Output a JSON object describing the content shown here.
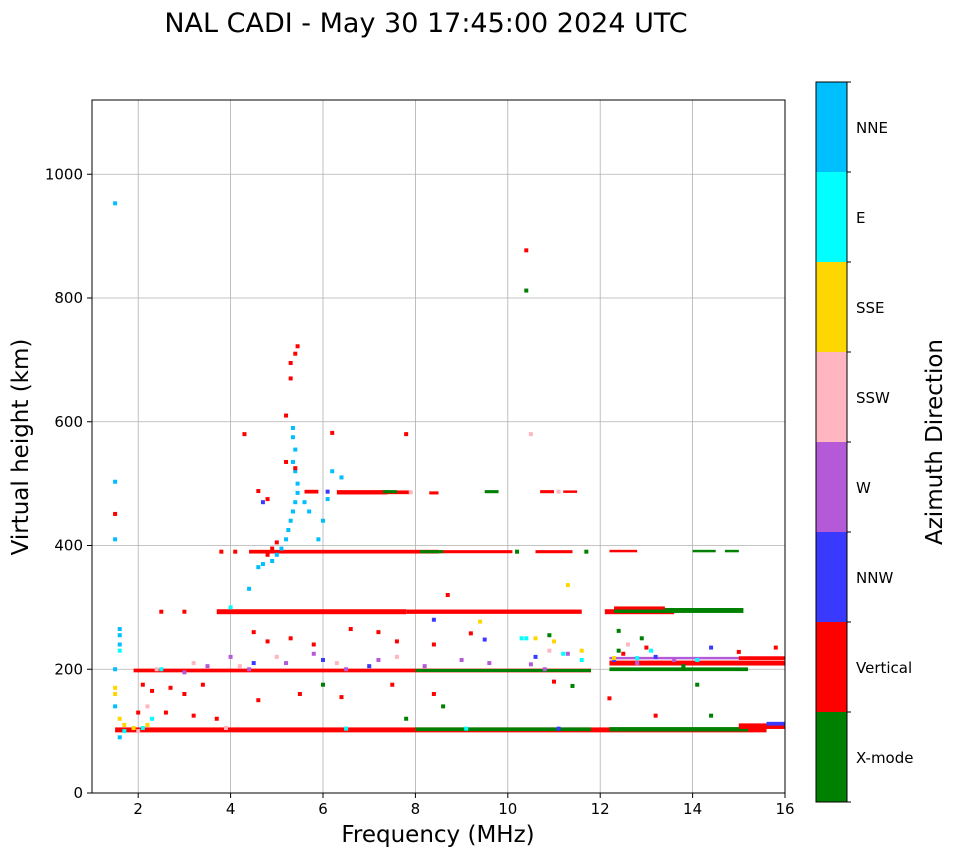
{
  "chart_data": {
    "type": "scatter",
    "title": "NAL CADI - May 30 17:45:00 2024 UTC",
    "xlabel": "Frequency (MHz)",
    "ylabel": "Virtual height (km)",
    "xlim": [
      1,
      16
    ],
    "ylim": [
      0,
      1120
    ],
    "xticks": [
      2,
      4,
      6,
      8,
      10,
      12,
      14,
      16
    ],
    "yticks": [
      0,
      200,
      400,
      600,
      800,
      1000
    ],
    "grid": true,
    "colorbar": {
      "label": "Azimuth Direction",
      "categories": [
        {
          "name": "X-mode",
          "color": "#008000"
        },
        {
          "name": "Vertical",
          "color": "#ff0000"
        },
        {
          "name": "NNW",
          "color": "#3a3aff"
        },
        {
          "name": "W",
          "color": "#b45ad8"
        },
        {
          "name": "SSW",
          "color": "#ffb6c1"
        },
        {
          "name": "SSE",
          "color": "#ffd700"
        },
        {
          "name": "E",
          "color": "#00ffff"
        },
        {
          "name": "NNE",
          "color": "#00bfff"
        }
      ]
    },
    "traces": [
      {
        "dir": "Vertical",
        "x0": 1.5,
        "x1": 15.6,
        "y": 102,
        "h": 8
      },
      {
        "dir": "X-mode",
        "x0": 8.0,
        "x1": 11.8,
        "y": 103,
        "h": 6
      },
      {
        "dir": "X-mode",
        "x0": 12.2,
        "x1": 15.2,
        "y": 103,
        "h": 7
      },
      {
        "dir": "Vertical",
        "x0": 15.0,
        "x1": 16.0,
        "y": 108,
        "h": 9
      },
      {
        "dir": "NNW",
        "x0": 15.6,
        "x1": 16.0,
        "y": 112,
        "h": 6
      },
      {
        "dir": "Vertical",
        "x0": 1.9,
        "x1": 11.8,
        "y": 198,
        "h": 6
      },
      {
        "dir": "X-mode",
        "x0": 8.0,
        "x1": 11.8,
        "y": 198,
        "h": 5
      },
      {
        "dir": "Vertical",
        "x0": 12.2,
        "x1": 16.0,
        "y": 210,
        "h": 8
      },
      {
        "dir": "X-mode",
        "x0": 12.2,
        "x1": 15.2,
        "y": 200,
        "h": 6
      },
      {
        "dir": "W",
        "x0": 12.2,
        "x1": 15.2,
        "y": 218,
        "h": 4
      },
      {
        "dir": "Vertical",
        "x0": 15.0,
        "x1": 16.0,
        "y": 218,
        "h": 6
      },
      {
        "dir": "Vertical",
        "x0": 3.7,
        "x1": 7.8,
        "y": 293,
        "h": 8
      },
      {
        "dir": "Vertical",
        "x0": 7.8,
        "x1": 11.6,
        "y": 293,
        "h": 7
      },
      {
        "dir": "Vertical",
        "x0": 12.1,
        "x1": 13.6,
        "y": 293,
        "h": 8
      },
      {
        "dir": "X-mode",
        "x0": 12.3,
        "x1": 15.1,
        "y": 295,
        "h": 8
      },
      {
        "dir": "Vertical",
        "x0": 12.3,
        "x1": 13.4,
        "y": 299,
        "h": 5
      },
      {
        "dir": "Vertical",
        "x0": 4.4,
        "x1": 8.5,
        "y": 390,
        "h": 6
      },
      {
        "dir": "Vertical",
        "x0": 8.5,
        "x1": 10.1,
        "y": 390,
        "h": 5
      },
      {
        "dir": "X-mode",
        "x0": 8.1,
        "x1": 8.6,
        "y": 390,
        "h": 5
      },
      {
        "dir": "Vertical",
        "x0": 10.6,
        "x1": 11.4,
        "y": 390,
        "h": 5
      },
      {
        "dir": "Vertical",
        "x0": 12.2,
        "x1": 12.8,
        "y": 391,
        "h": 4
      },
      {
        "dir": "X-mode",
        "x0": 14.0,
        "x1": 14.5,
        "y": 391,
        "h": 4
      },
      {
        "dir": "X-mode",
        "x0": 14.7,
        "x1": 15.0,
        "y": 391,
        "h": 4
      },
      {
        "dir": "Vertical",
        "x0": 6.3,
        "x1": 7.4,
        "y": 486,
        "h": 7
      },
      {
        "dir": "Vertical",
        "x0": 7.4,
        "x1": 7.9,
        "y": 486,
        "h": 6
      },
      {
        "dir": "X-mode",
        "x0": 7.3,
        "x1": 7.6,
        "y": 487,
        "h": 5
      },
      {
        "dir": "Vertical",
        "x0": 8.3,
        "x1": 8.5,
        "y": 485,
        "h": 5
      },
      {
        "dir": "X-mode",
        "x0": 9.5,
        "x1": 9.8,
        "y": 487,
        "h": 5
      },
      {
        "dir": "Vertical",
        "x0": 10.7,
        "x1": 11.0,
        "y": 487,
        "h": 5
      },
      {
        "dir": "Vertical",
        "x0": 11.2,
        "x1": 11.5,
        "y": 487,
        "h": 4
      },
      {
        "dir": "Vertical",
        "x0": 5.6,
        "x1": 5.9,
        "y": 487,
        "h": 6
      }
    ],
    "points": [
      {
        "dir": "NNE",
        "x": 4.6,
        "y": 365
      },
      {
        "dir": "NNE",
        "x": 4.7,
        "y": 370
      },
      {
        "dir": "NNE",
        "x": 4.9,
        "y": 375
      },
      {
        "dir": "NNE",
        "x": 5.0,
        "y": 385
      },
      {
        "dir": "NNE",
        "x": 5.1,
        "y": 395
      },
      {
        "dir": "NNE",
        "x": 5.2,
        "y": 410
      },
      {
        "dir": "NNE",
        "x": 5.25,
        "y": 425
      },
      {
        "dir": "NNE",
        "x": 5.3,
        "y": 440
      },
      {
        "dir": "NNE",
        "x": 5.35,
        "y": 455
      },
      {
        "dir": "NNE",
        "x": 5.4,
        "y": 470
      },
      {
        "dir": "NNE",
        "x": 5.45,
        "y": 485
      },
      {
        "dir": "NNE",
        "x": 5.45,
        "y": 500
      },
      {
        "dir": "NNE",
        "x": 5.4,
        "y": 520
      },
      {
        "dir": "NNE",
        "x": 5.35,
        "y": 535
      },
      {
        "dir": "NNE",
        "x": 5.4,
        "y": 555
      },
      {
        "dir": "NNE",
        "x": 5.35,
        "y": 575
      },
      {
        "dir": "NNE",
        "x": 5.35,
        "y": 590
      },
      {
        "dir": "NNE",
        "x": 5.6,
        "y": 470
      },
      {
        "dir": "NNE",
        "x": 5.7,
        "y": 455
      },
      {
        "dir": "NNE",
        "x": 5.9,
        "y": 410
      },
      {
        "dir": "NNE",
        "x": 6.0,
        "y": 440
      },
      {
        "dir": "NNE",
        "x": 6.1,
        "y": 475
      },
      {
        "dir": "NNE",
        "x": 6.2,
        "y": 520
      },
      {
        "dir": "NNE",
        "x": 6.4,
        "y": 510
      },
      {
        "dir": "NNE",
        "x": 4.4,
        "y": 330
      },
      {
        "dir": "NNE",
        "x": 1.5,
        "y": 953
      },
      {
        "dir": "NNE",
        "x": 1.5,
        "y": 503
      },
      {
        "dir": "NNE",
        "x": 1.5,
        "y": 410
      },
      {
        "dir": "NNE",
        "x": 1.6,
        "y": 265
      },
      {
        "dir": "NNE",
        "x": 1.6,
        "y": 255
      },
      {
        "dir": "NNE",
        "x": 1.6,
        "y": 240
      },
      {
        "dir": "NNE",
        "x": 1.5,
        "y": 200
      },
      {
        "dir": "NNE",
        "x": 1.5,
        "y": 140
      },
      {
        "dir": "NNE",
        "x": 1.6,
        "y": 90
      },
      {
        "dir": "Vertical",
        "x": 5.45,
        "y": 722
      },
      {
        "dir": "Vertical",
        "x": 5.4,
        "y": 710
      },
      {
        "dir": "Vertical",
        "x": 5.3,
        "y": 695
      },
      {
        "dir": "Vertical",
        "x": 5.3,
        "y": 670
      },
      {
        "dir": "Vertical",
        "x": 5.2,
        "y": 610
      },
      {
        "dir": "Vertical",
        "x": 4.3,
        "y": 580
      },
      {
        "dir": "Vertical",
        "x": 6.2,
        "y": 582
      },
      {
        "dir": "Vertical",
        "x": 7.8,
        "y": 580
      },
      {
        "dir": "Vertical",
        "x": 1.5,
        "y": 451
      },
      {
        "dir": "Vertical",
        "x": 10.4,
        "y": 877
      },
      {
        "dir": "Vertical",
        "x": 5.2,
        "y": 535
      },
      {
        "dir": "Vertical",
        "x": 5.4,
        "y": 525
      },
      {
        "dir": "Vertical",
        "x": 4.6,
        "y": 488
      },
      {
        "dir": "Vertical",
        "x": 4.8,
        "y": 475
      },
      {
        "dir": "Vertical",
        "x": 4.8,
        "y": 385
      },
      {
        "dir": "Vertical",
        "x": 4.9,
        "y": 395
      },
      {
        "dir": "Vertical",
        "x": 5.0,
        "y": 405
      },
      {
        "dir": "Vertical",
        "x": 3.8,
        "y": 390
      },
      {
        "dir": "Vertical",
        "x": 4.1,
        "y": 390
      },
      {
        "dir": "Vertical",
        "x": 2.5,
        "y": 293
      },
      {
        "dir": "Vertical",
        "x": 3.0,
        "y": 293
      },
      {
        "dir": "Vertical",
        "x": 8.7,
        "y": 320
      },
      {
        "dir": "Vertical",
        "x": 4.5,
        "y": 260
      },
      {
        "dir": "Vertical",
        "x": 4.8,
        "y": 245
      },
      {
        "dir": "Vertical",
        "x": 5.3,
        "y": 250
      },
      {
        "dir": "Vertical",
        "x": 5.8,
        "y": 240
      },
      {
        "dir": "Vertical",
        "x": 6.6,
        "y": 265
      },
      {
        "dir": "Vertical",
        "x": 7.2,
        "y": 260
      },
      {
        "dir": "Vertical",
        "x": 7.6,
        "y": 245
      },
      {
        "dir": "Vertical",
        "x": 8.4,
        "y": 240
      },
      {
        "dir": "Vertical",
        "x": 9.2,
        "y": 258
      },
      {
        "dir": "Vertical",
        "x": 2.1,
        "y": 175
      },
      {
        "dir": "Vertical",
        "x": 2.3,
        "y": 165
      },
      {
        "dir": "Vertical",
        "x": 2.7,
        "y": 170
      },
      {
        "dir": "Vertical",
        "x": 3.0,
        "y": 160
      },
      {
        "dir": "Vertical",
        "x": 3.4,
        "y": 175
      },
      {
        "dir": "Vertical",
        "x": 4.6,
        "y": 150
      },
      {
        "dir": "Vertical",
        "x": 5.5,
        "y": 160
      },
      {
        "dir": "Vertical",
        "x": 6.4,
        "y": 155
      },
      {
        "dir": "Vertical",
        "x": 7.5,
        "y": 175
      },
      {
        "dir": "Vertical",
        "x": 8.4,
        "y": 160
      },
      {
        "dir": "Vertical",
        "x": 12.2,
        "y": 153
      },
      {
        "dir": "Vertical",
        "x": 13.2,
        "y": 125
      },
      {
        "dir": "Vertical",
        "x": 11.0,
        "y": 180
      },
      {
        "dir": "Vertical",
        "x": 2.0,
        "y": 130
      },
      {
        "dir": "Vertical",
        "x": 2.6,
        "y": 130
      },
      {
        "dir": "Vertical",
        "x": 3.2,
        "y": 125
      },
      {
        "dir": "Vertical",
        "x": 3.7,
        "y": 120
      },
      {
        "dir": "Vertical",
        "x": 12.5,
        "y": 225
      },
      {
        "dir": "Vertical",
        "x": 13.0,
        "y": 235
      },
      {
        "dir": "Vertical",
        "x": 15.8,
        "y": 235
      },
      {
        "dir": "Vertical",
        "x": 15.0,
        "y": 228
      },
      {
        "dir": "X-mode",
        "x": 10.4,
        "y": 812
      },
      {
        "dir": "X-mode",
        "x": 12.4,
        "y": 262
      },
      {
        "dir": "X-mode",
        "x": 12.9,
        "y": 250
      },
      {
        "dir": "X-mode",
        "x": 14.1,
        "y": 175
      },
      {
        "dir": "X-mode",
        "x": 14.4,
        "y": 125
      },
      {
        "dir": "X-mode",
        "x": 11.4,
        "y": 173
      },
      {
        "dir": "X-mode",
        "x": 8.6,
        "y": 140
      },
      {
        "dir": "X-mode",
        "x": 7.8,
        "y": 120
      },
      {
        "dir": "X-mode",
        "x": 6.0,
        "y": 175
      },
      {
        "dir": "X-mode",
        "x": 10.2,
        "y": 390
      },
      {
        "dir": "X-mode",
        "x": 11.7,
        "y": 390
      },
      {
        "dir": "X-mode",
        "x": 12.4,
        "y": 230
      },
      {
        "dir": "X-mode",
        "x": 13.8,
        "y": 205
      },
      {
        "dir": "X-mode",
        "x": 10.9,
        "y": 255
      },
      {
        "dir": "NNW",
        "x": 9.5,
        "y": 248
      },
      {
        "dir": "NNW",
        "x": 8.4,
        "y": 280
      },
      {
        "dir": "NNW",
        "x": 11.1,
        "y": 104
      },
      {
        "dir": "NNW",
        "x": 4.5,
        "y": 210
      },
      {
        "dir": "NNW",
        "x": 6.0,
        "y": 215
      },
      {
        "dir": "NNW",
        "x": 7.0,
        "y": 205
      },
      {
        "dir": "NNW",
        "x": 10.6,
        "y": 220
      },
      {
        "dir": "NNW",
        "x": 12.3,
        "y": 215
      },
      {
        "dir": "NNW",
        "x": 14.4,
        "y": 235
      },
      {
        "dir": "NNW",
        "x": 13.2,
        "y": 220
      },
      {
        "dir": "NNW",
        "x": 4.7,
        "y": 470
      },
      {
        "dir": "NNW",
        "x": 6.1,
        "y": 487
      },
      {
        "dir": "W",
        "x": 3.0,
        "y": 195
      },
      {
        "dir": "W",
        "x": 3.5,
        "y": 205
      },
      {
        "dir": "W",
        "x": 4.0,
        "y": 220
      },
      {
        "dir": "W",
        "x": 4.4,
        "y": 200
      },
      {
        "dir": "W",
        "x": 5.2,
        "y": 210
      },
      {
        "dir": "W",
        "x": 5.8,
        "y": 225
      },
      {
        "dir": "W",
        "x": 6.5,
        "y": 200
      },
      {
        "dir": "W",
        "x": 7.2,
        "y": 215
      },
      {
        "dir": "W",
        "x": 8.2,
        "y": 205
      },
      {
        "dir": "W",
        "x": 9.0,
        "y": 215
      },
      {
        "dir": "W",
        "x": 10.8,
        "y": 200
      },
      {
        "dir": "W",
        "x": 11.3,
        "y": 225
      },
      {
        "dir": "W",
        "x": 12.8,
        "y": 210
      },
      {
        "dir": "W",
        "x": 13.6,
        "y": 215
      },
      {
        "dir": "W",
        "x": 10.5,
        "y": 208
      },
      {
        "dir": "W",
        "x": 9.6,
        "y": 210
      },
      {
        "dir": "SSW",
        "x": 2.4,
        "y": 200
      },
      {
        "dir": "SSW",
        "x": 3.2,
        "y": 210
      },
      {
        "dir": "SSW",
        "x": 4.2,
        "y": 205
      },
      {
        "dir": "SSW",
        "x": 5.0,
        "y": 220
      },
      {
        "dir": "SSW",
        "x": 6.3,
        "y": 210
      },
      {
        "dir": "SSW",
        "x": 7.6,
        "y": 220
      },
      {
        "dir": "SSW",
        "x": 10.5,
        "y": 580
      },
      {
        "dir": "SSW",
        "x": 11.1,
        "y": 487
      },
      {
        "dir": "SSW",
        "x": 2.0,
        "y": 100
      },
      {
        "dir": "SSW",
        "x": 3.9,
        "y": 105
      },
      {
        "dir": "SSW",
        "x": 7.9,
        "y": 486
      },
      {
        "dir": "SSW",
        "x": 12.6,
        "y": 240
      },
      {
        "dir": "SSW",
        "x": 10.9,
        "y": 230
      },
      {
        "dir": "SSW",
        "x": 2.2,
        "y": 140
      },
      {
        "dir": "SSE",
        "x": 11.3,
        "y": 336
      },
      {
        "dir": "SSE",
        "x": 1.5,
        "y": 170
      },
      {
        "dir": "SSE",
        "x": 1.5,
        "y": 160
      },
      {
        "dir": "SSE",
        "x": 1.6,
        "y": 120
      },
      {
        "dir": "SSE",
        "x": 1.7,
        "y": 110
      },
      {
        "dir": "SSE",
        "x": 1.9,
        "y": 105
      },
      {
        "dir": "SSE",
        "x": 2.2,
        "y": 110
      },
      {
        "dir": "SSE",
        "x": 9.4,
        "y": 277
      },
      {
        "dir": "SSE",
        "x": 10.6,
        "y": 250
      },
      {
        "dir": "SSE",
        "x": 11.0,
        "y": 245
      },
      {
        "dir": "SSE",
        "x": 12.3,
        "y": 218
      },
      {
        "dir": "SSE",
        "x": 11.6,
        "y": 230
      },
      {
        "dir": "E",
        "x": 10.4,
        "y": 250
      },
      {
        "dir": "E",
        "x": 11.2,
        "y": 225
      },
      {
        "dir": "E",
        "x": 11.6,
        "y": 215
      },
      {
        "dir": "E",
        "x": 13.1,
        "y": 230
      },
      {
        "dir": "E",
        "x": 14.1,
        "y": 215
      },
      {
        "dir": "E",
        "x": 1.6,
        "y": 230
      },
      {
        "dir": "E",
        "x": 1.7,
        "y": 100
      },
      {
        "dir": "E",
        "x": 2.1,
        "y": 105
      },
      {
        "dir": "E",
        "x": 2.3,
        "y": 120
      },
      {
        "dir": "E",
        "x": 2.5,
        "y": 200
      },
      {
        "dir": "E",
        "x": 6.5,
        "y": 104
      },
      {
        "dir": "E",
        "x": 9.1,
        "y": 104
      },
      {
        "dir": "E",
        "x": 10.3,
        "y": 250
      },
      {
        "dir": "E",
        "x": 12.8,
        "y": 218
      },
      {
        "dir": "E",
        "x": 4.0,
        "y": 300
      }
    ]
  }
}
